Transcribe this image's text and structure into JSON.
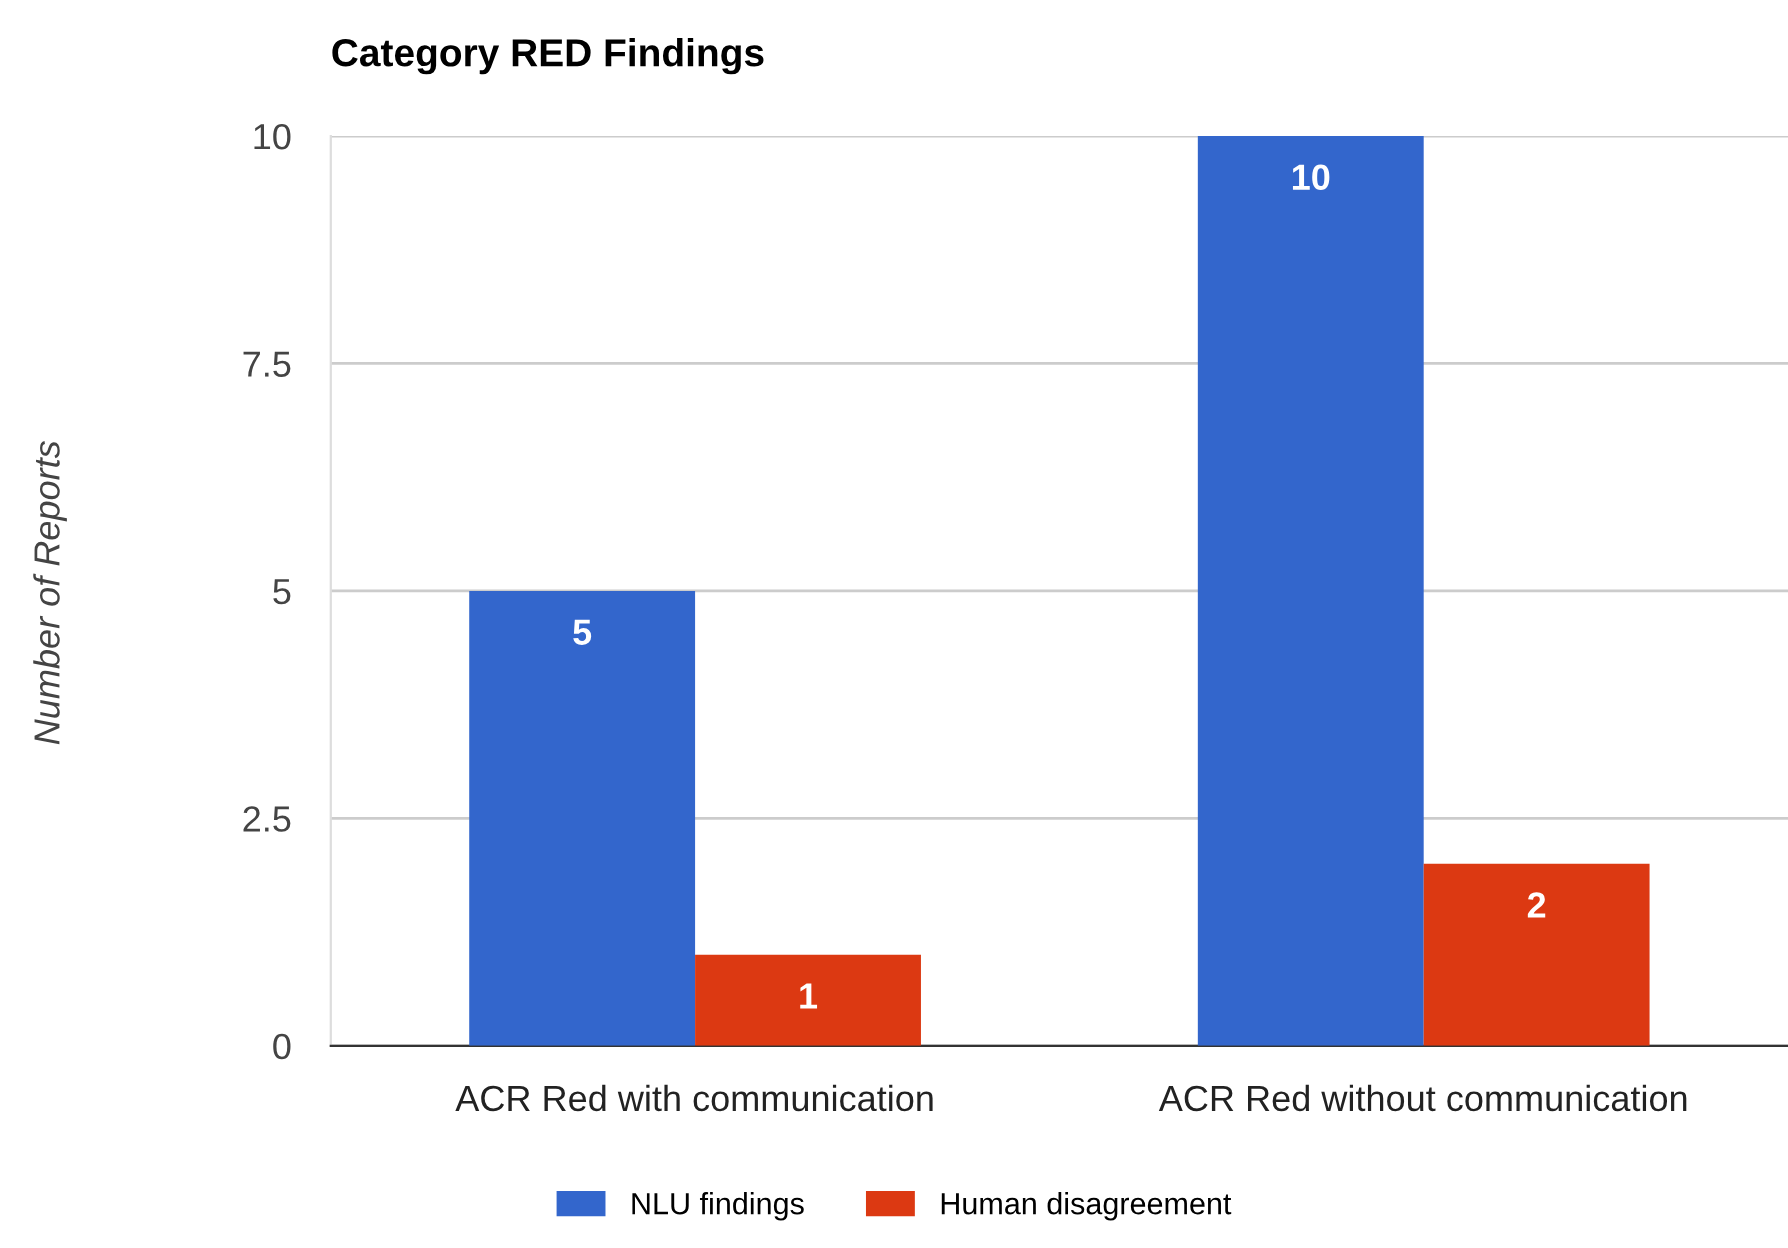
{
  "chart_data": {
    "type": "bar",
    "title": "Category RED Findings",
    "ylabel": "Number of Reports",
    "categories": [
      "ACR Red with communication",
      "ACR Red without communication"
    ],
    "series": [
      {
        "name": "NLU findings",
        "color": "#3366cc",
        "values": [
          5,
          10
        ]
      },
      {
        "name": "Human disagreement",
        "color": "#dc3912",
        "values": [
          1,
          2
        ]
      }
    ],
    "ylim": [
      0,
      10
    ],
    "yticks": [
      0,
      2.5,
      5,
      7.5,
      10
    ],
    "grid": "y",
    "legend": "bottom",
    "data_labels": true
  }
}
